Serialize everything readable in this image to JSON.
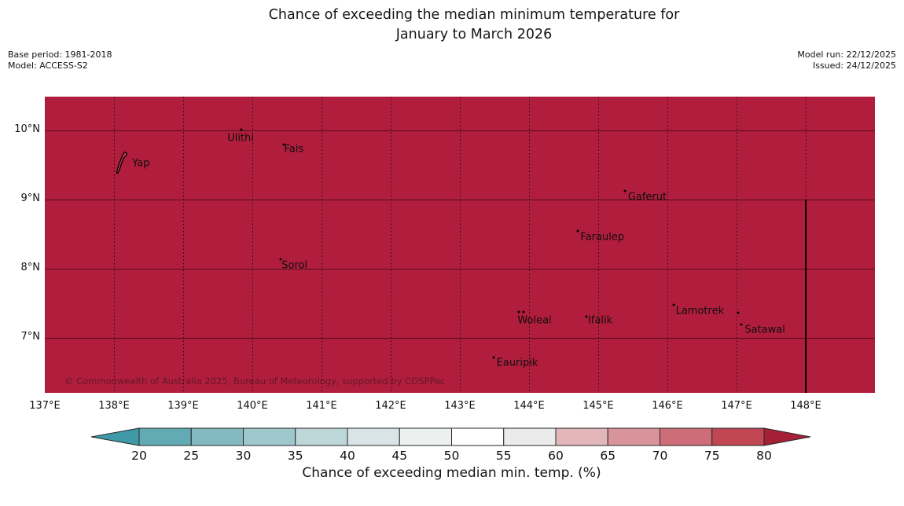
{
  "title": {
    "line1": "Chance of exceeding the median minimum temperature for",
    "line2": "January to March 2026"
  },
  "annotations": {
    "base_period": "Base period: 1981-2018",
    "model": "Model: ACCESS-S2",
    "model_run": "Model run: 22/12/2025",
    "issued": "Issued: 24/12/2025"
  },
  "map": {
    "fill_color": "#b11e3d",
    "lon_range": [
      137,
      149
    ],
    "lat_range": [
      6.2,
      10.49
    ],
    "y_ticks": [
      {
        "label": "10°N",
        "lat": 10
      },
      {
        "label": "9°N",
        "lat": 9
      },
      {
        "label": "8°N",
        "lat": 8
      },
      {
        "label": "7°N",
        "lat": 7
      }
    ],
    "x_ticks": [
      {
        "label": "137°E",
        "lon": 137
      },
      {
        "label": "138°E",
        "lon": 138
      },
      {
        "label": "139°E",
        "lon": 139
      },
      {
        "label": "140°E",
        "lon": 140
      },
      {
        "label": "141°E",
        "lon": 141
      },
      {
        "label": "142°E",
        "lon": 142
      },
      {
        "label": "143°E",
        "lon": 143
      },
      {
        "label": "144°E",
        "lon": 144
      },
      {
        "label": "145°E",
        "lon": 145
      },
      {
        "label": "146°E",
        "lon": 146
      },
      {
        "label": "147°E",
        "lon": 147
      },
      {
        "label": "148°E",
        "lon": 148
      }
    ],
    "boundary": {
      "lon": 148,
      "from_lat": 9
    },
    "places": [
      {
        "name": "Yap",
        "label_lon": 138.39,
        "label_lat": 9.52,
        "markers": [],
        "island": true
      },
      {
        "name": "Ulithi",
        "label_lon": 139.83,
        "label_lat": 9.89,
        "markers": [
          [
            139.84,
            10.01
          ]
        ]
      },
      {
        "name": "Fais",
        "label_lon": 140.6,
        "label_lat": 9.73,
        "markers": [
          [
            140.46,
            9.8
          ]
        ]
      },
      {
        "name": "Gaferut",
        "label_lon": 145.71,
        "label_lat": 9.04,
        "markers": [
          [
            145.39,
            9.13
          ]
        ]
      },
      {
        "name": "Faraulep",
        "label_lon": 145.06,
        "label_lat": 8.46,
        "markers": [
          [
            144.71,
            8.55
          ]
        ]
      },
      {
        "name": "Sorol",
        "label_lon": 140.61,
        "label_lat": 8.05,
        "markers": [
          [
            140.41,
            8.14
          ]
        ]
      },
      {
        "name": "Woleai",
        "label_lon": 144.08,
        "label_lat": 7.25,
        "markers": [
          [
            143.85,
            7.38
          ],
          [
            143.92,
            7.38
          ]
        ]
      },
      {
        "name": "Ifalik",
        "label_lon": 145.03,
        "label_lat": 7.25,
        "markers": [
          [
            144.83,
            7.31
          ]
        ]
      },
      {
        "name": "Lamotrek",
        "label_lon": 146.47,
        "label_lat": 7.39,
        "markers": [
          [
            146.09,
            7.48
          ],
          [
            147.02,
            7.37
          ]
        ]
      },
      {
        "name": "Satawal",
        "label_lon": 147.41,
        "label_lat": 7.11,
        "markers": [
          [
            147.07,
            7.19
          ]
        ]
      },
      {
        "name": "Eauripik",
        "label_lon": 143.83,
        "label_lat": 6.64,
        "markers": [
          [
            143.49,
            6.72
          ]
        ]
      }
    ],
    "copyright": "© Commonwealth of Australia 2025, Bureau of Meteorology, supported by COSPPac"
  },
  "colorbar": {
    "label": "Chance of exceeding median min. temp. (%)",
    "tick_labels": [
      "20",
      "25",
      "30",
      "35",
      "40",
      "45",
      "50",
      "55",
      "60",
      "65",
      "70",
      "75",
      "80"
    ],
    "under_color": "#3f99a7",
    "over_color": "#a51f35",
    "segment_colors": [
      "#62aab4",
      "#83b9c1",
      "#9fc8cd",
      "#bdd7d9",
      "#d8e4e5",
      "#ecf1f0",
      "#ffffff",
      "#ebebeb",
      "#e3b7ba",
      "#d9949b",
      "#cc6d77",
      "#bf4652"
    ],
    "outline_color": "#262626"
  }
}
